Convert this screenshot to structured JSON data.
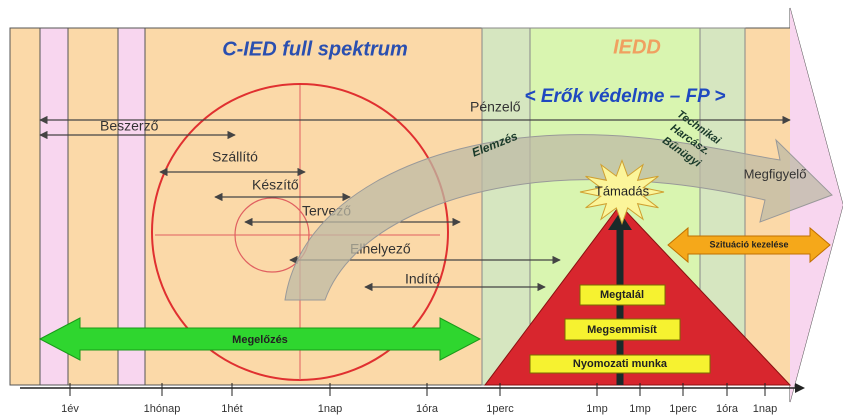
{
  "title": "C-IED full spektrum",
  "iedd": "IEDD",
  "force_protection": "< Erők védelme – FP >",
  "actors": [
    "Pénzelő",
    "Beszerző",
    "Szállító",
    "Készítő",
    "Tervező",
    "Elhelyező",
    "Indító"
  ],
  "analysis": {
    "label": "Elemzés",
    "methods": [
      "Technikai",
      "Harcász.",
      "Bűnügyi"
    ],
    "observer": "Megfigyelő"
  },
  "attack": "Támadás",
  "pyramid": [
    "Megtalál",
    "Megsemmisít",
    "Nyomozati munka"
  ],
  "situation": "Szituáció kezelése",
  "prevention": "Megelőzés",
  "timeline": [
    "1év",
    "1hónap",
    "1hét",
    "1nap",
    "1óra",
    "1perc",
    "1mp",
    "1mp",
    "1perc",
    "1óra",
    "1nap"
  ]
}
